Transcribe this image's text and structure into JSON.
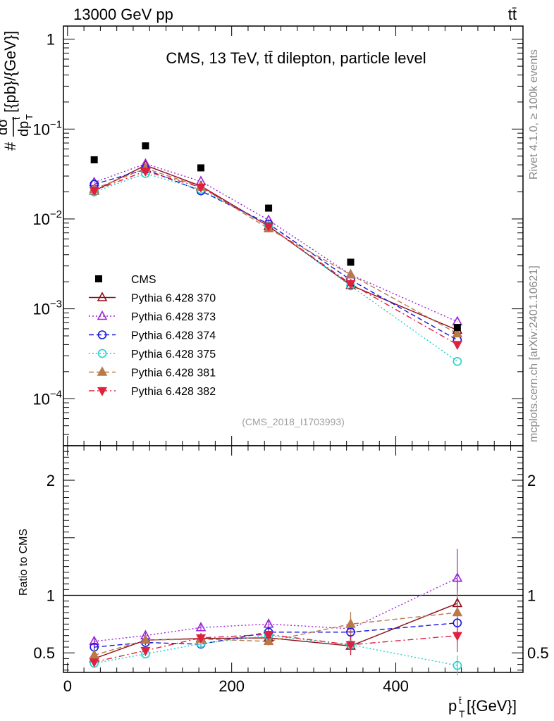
{
  "header": {
    "left_label": "13000 GeV pp",
    "right_label": "tt̄"
  },
  "side_labels": {
    "rivet": "Rivet 4.1.0, ≥ 100k events",
    "source": "mcplots.cern.ch [arXiv:2401.10621]"
  },
  "chart_data": {
    "type": "line",
    "title": "CMS, 13 TeV, tt̄ dilepton, particle level",
    "analysis_id": "(CMS_2018_I1703993)",
    "xlabel": "p_T^t̄ [{GeV}]",
    "xlabel_main": "p",
    "xlabel_sup": "t̄",
    "xlabel_sub": "T",
    "xlabel_tail": "[{GeV}]",
    "ylabel": "# dσ/dp_T^t̄ [{pb}/{GeV}]",
    "ylabel_prefix": "#",
    "ylabel_num": "dσ",
    "ylabel_den": "dp",
    "ylabel_den_sup": "t̄",
    "ylabel_den_sub": "T",
    "ylabel_unit": "[{pb}/{GeV}]",
    "ratio_ylabel": "Ratio to CMS",
    "xlim": [
      -5,
      555
    ],
    "ylim": [
      3e-05,
      1.4
    ],
    "ratio_ylim": [
      0.33,
      2.3
    ],
    "x_ticks": [
      0,
      200,
      400
    ],
    "x_tick_labels": [
      "0",
      "200",
      "400"
    ],
    "y_ticks": [
      1,
      0.1,
      0.01,
      0.001,
      0.0001
    ],
    "y_tick_labels": [
      {
        "base": "1",
        "exp": ""
      },
      {
        "base": "10",
        "exp": "−1"
      },
      {
        "base": "10",
        "exp": "−2"
      },
      {
        "base": "10",
        "exp": "−3"
      },
      {
        "base": "10",
        "exp": "−4"
      }
    ],
    "ratio_ticks": [
      0.5,
      1,
      2
    ],
    "ratio_tick_labels": [
      "0.5",
      "1",
      "2"
    ],
    "x": [
      32.5,
      95,
      162.5,
      245,
      345,
      475
    ],
    "data": {
      "name": "CMS",
      "values": [
        0.0455,
        0.065,
        0.037,
        0.0132,
        0.0033,
        0.00062
      ]
    },
    "series": [
      {
        "name": "Pythia 6.428 370",
        "color": "#8b0d1a",
        "marker": "triangle-open",
        "dash": "solid",
        "values": [
          0.0205,
          0.0395,
          0.0232,
          0.0083,
          0.00183,
          0.00058
        ],
        "ratio": [
          0.45,
          0.61,
          0.625,
          0.63,
          0.56,
          0.93
        ]
      },
      {
        "name": "Pythia 6.428 373",
        "color": "#9b25d8",
        "marker": "triangle-open",
        "dash": "dotted",
        "values": [
          0.0255,
          0.041,
          0.0262,
          0.0097,
          0.0024,
          0.00072
        ],
        "ratio": [
          0.6,
          0.65,
          0.72,
          0.75,
          0.71,
          1.15
        ]
      },
      {
        "name": "Pythia 6.428 374",
        "color": "#1515dd",
        "marker": "circle-open",
        "dash": "dashed",
        "values": [
          0.0243,
          0.0355,
          0.0205,
          0.0088,
          0.0021,
          0.00045
        ],
        "ratio": [
          0.55,
          0.59,
          0.575,
          0.68,
          0.68,
          0.76
        ]
      },
      {
        "name": "Pythia 6.428 375",
        "color": "#22d0c8",
        "marker": "circle-open",
        "dash": "dotted",
        "values": [
          0.02,
          0.032,
          0.0213,
          0.0084,
          0.0018,
          0.00026
        ],
        "ratio": [
          0.41,
          0.49,
          0.58,
          0.65,
          0.57,
          0.39
        ]
      },
      {
        "name": "Pythia 6.428 381",
        "color": "#b87a48",
        "marker": "triangle-filled",
        "dash": "dashed",
        "values": [
          0.0215,
          0.0365,
          0.0228,
          0.0078,
          0.0024,
          0.00053
        ],
        "ratio": [
          0.48,
          0.61,
          0.62,
          0.6,
          0.75,
          0.85
        ]
      },
      {
        "name": "Pythia 6.428 382",
        "color": "#e0203f",
        "marker": "triangle-down-filled",
        "dash": "dashdot",
        "values": [
          0.0207,
          0.034,
          0.0225,
          0.0083,
          0.0019,
          0.0004
        ],
        "ratio": [
          0.42,
          0.52,
          0.63,
          0.66,
          0.57,
          0.65
        ]
      }
    ],
    "legend_position": "middle-left"
  }
}
